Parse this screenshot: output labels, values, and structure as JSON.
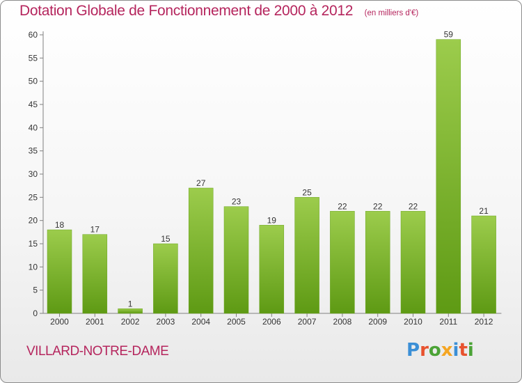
{
  "header": {
    "title": "Dotation Globale de Fonctionnement de 2000 à 2012",
    "unit": "(en milliers d'€)"
  },
  "footer": {
    "commune": "VILLARD-NOTRE-DAME",
    "brand": "Proxiti"
  },
  "colors": {
    "title": "#b5255d",
    "bar_top": "#9ccc4c",
    "bar_bottom": "#5e9a14",
    "axis": "#808080",
    "brand_letters": [
      "#3b8fd6",
      "#e8522e",
      "#4ba336",
      "#f5a623",
      "#3b8fd6",
      "#e8522e",
      "#4ba336"
    ]
  },
  "chart_data": {
    "type": "bar",
    "title": "Dotation Globale de Fonctionnement de 2000 à 2012",
    "subtitle": "(en milliers d'€)",
    "categories": [
      "2000",
      "2001",
      "2002",
      "2003",
      "2004",
      "2005",
      "2006",
      "2007",
      "2008",
      "2009",
      "2010",
      "2011",
      "2012"
    ],
    "values": [
      18,
      17,
      1,
      15,
      27,
      23,
      19,
      25,
      22,
      22,
      22,
      59,
      21
    ],
    "ylim": [
      0,
      60
    ],
    "yticks": [
      0,
      5,
      10,
      15,
      20,
      25,
      30,
      35,
      40,
      45,
      50,
      55,
      60
    ],
    "grid": false,
    "data_labels": true
  }
}
